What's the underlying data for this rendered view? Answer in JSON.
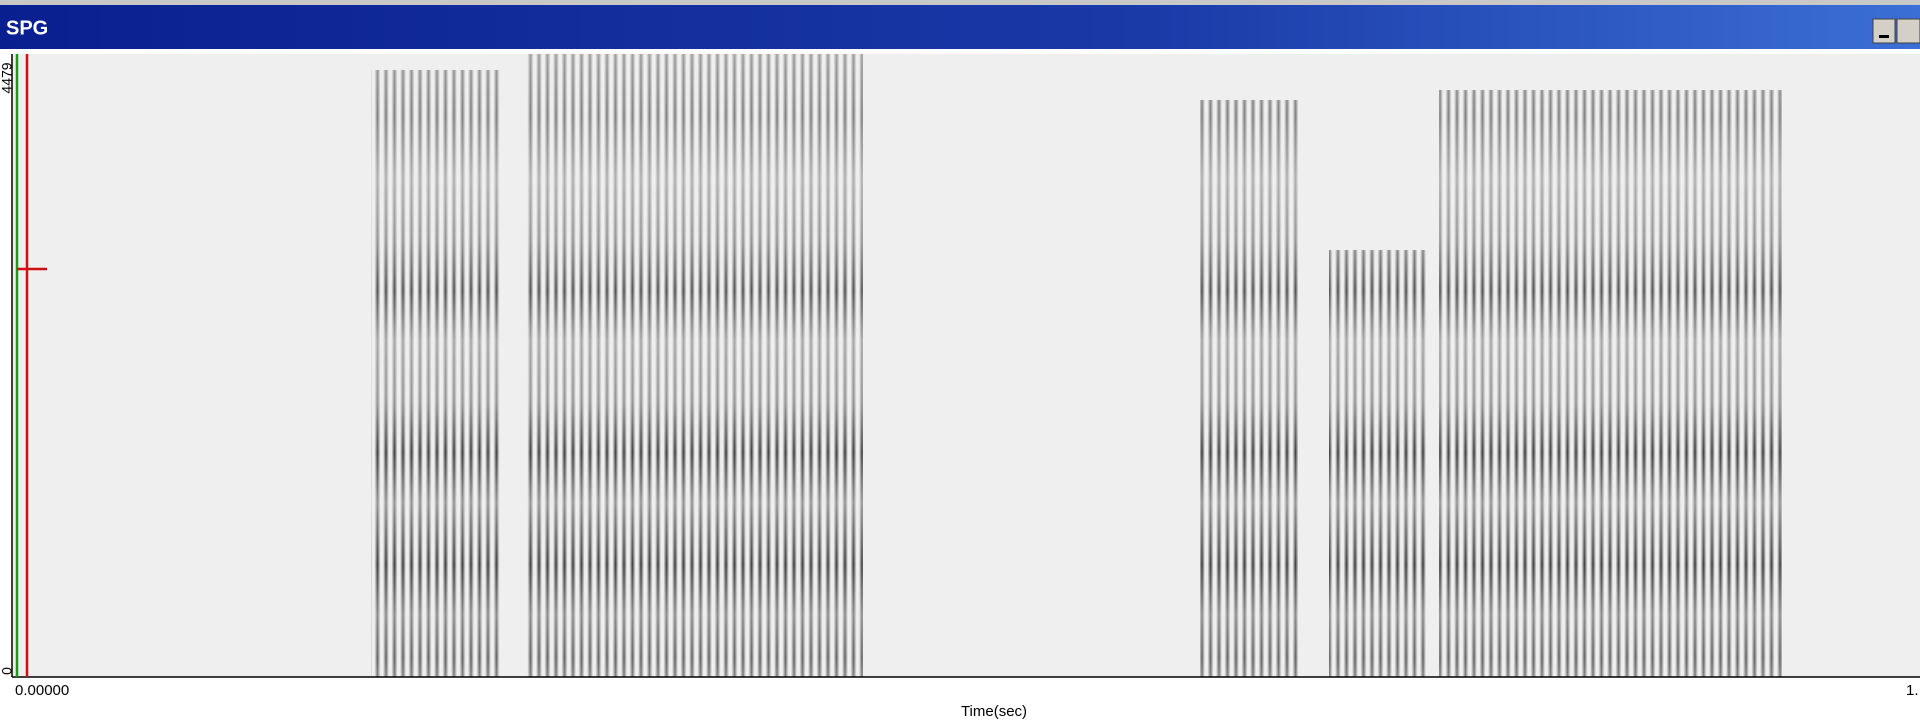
{
  "window": {
    "title": "SPG"
  },
  "axes": {
    "y_top": "4479",
    "y_bottom": "0",
    "x_start": "0.00000",
    "x_end": "1.",
    "x_label": "Time(sec)"
  }
}
